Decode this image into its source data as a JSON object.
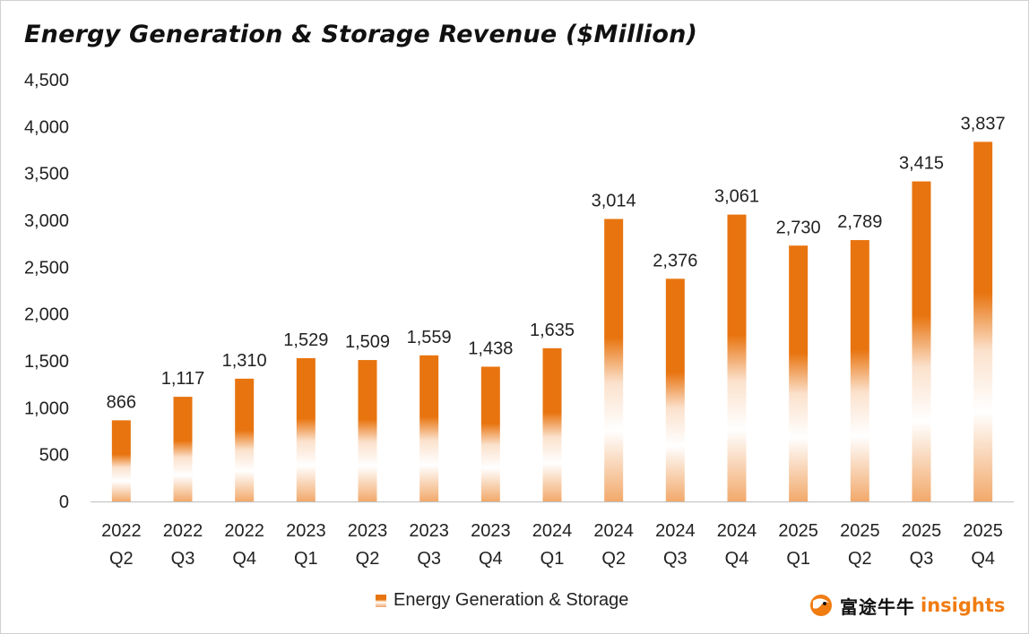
{
  "title": "Energy Generation & Storage Revenue ($Million)",
  "legend_label": "Energy Generation & Storage",
  "brand": {
    "cn": "富途牛牛",
    "en": "insights"
  },
  "colors": {
    "bar": "#e8740f",
    "bar_light": "#ffffff",
    "bar_bottom": "#f2a96b"
  },
  "chart_data": {
    "type": "bar",
    "categories": [
      [
        "2022",
        "Q2"
      ],
      [
        "2022",
        "Q3"
      ],
      [
        "2022",
        "Q4"
      ],
      [
        "2023",
        "Q1"
      ],
      [
        "2023",
        "Q2"
      ],
      [
        "2023",
        "Q3"
      ],
      [
        "2023",
        "Q4"
      ],
      [
        "2024",
        "Q1"
      ],
      [
        "2024",
        "Q2"
      ],
      [
        "2024",
        "Q3"
      ],
      [
        "2024",
        "Q4"
      ],
      [
        "2025",
        "Q1"
      ],
      [
        "2025",
        "Q2"
      ],
      [
        "2025",
        "Q3"
      ],
      [
        "2025",
        "Q4"
      ]
    ],
    "series": [
      {
        "name": "Energy Generation & Storage",
        "values": [
          866,
          1117,
          1310,
          1529,
          1509,
          1559,
          1438,
          1635,
          3014,
          2376,
          3061,
          2730,
          2789,
          3415,
          3837
        ],
        "labels": [
          "866",
          "1,117",
          "1,310",
          "1,529",
          "1,509",
          "1,559",
          "1,438",
          "1,635",
          "3,014",
          "2,376",
          "3,061",
          "2,730",
          "2,789",
          "3,415",
          "3,837"
        ]
      }
    ],
    "ylim": [
      0,
      4500
    ],
    "yticks": [
      0,
      500,
      1000,
      1500,
      2000,
      2500,
      3000,
      3500,
      4000,
      4500
    ],
    "ytick_labels": [
      "0",
      "500",
      "1,000",
      "1,500",
      "2,000",
      "2,500",
      "3,000",
      "3,500",
      "4,000",
      "4,500"
    ],
    "xlabel": "",
    "ylabel": "",
    "grid": false,
    "legend_position": "bottom"
  }
}
